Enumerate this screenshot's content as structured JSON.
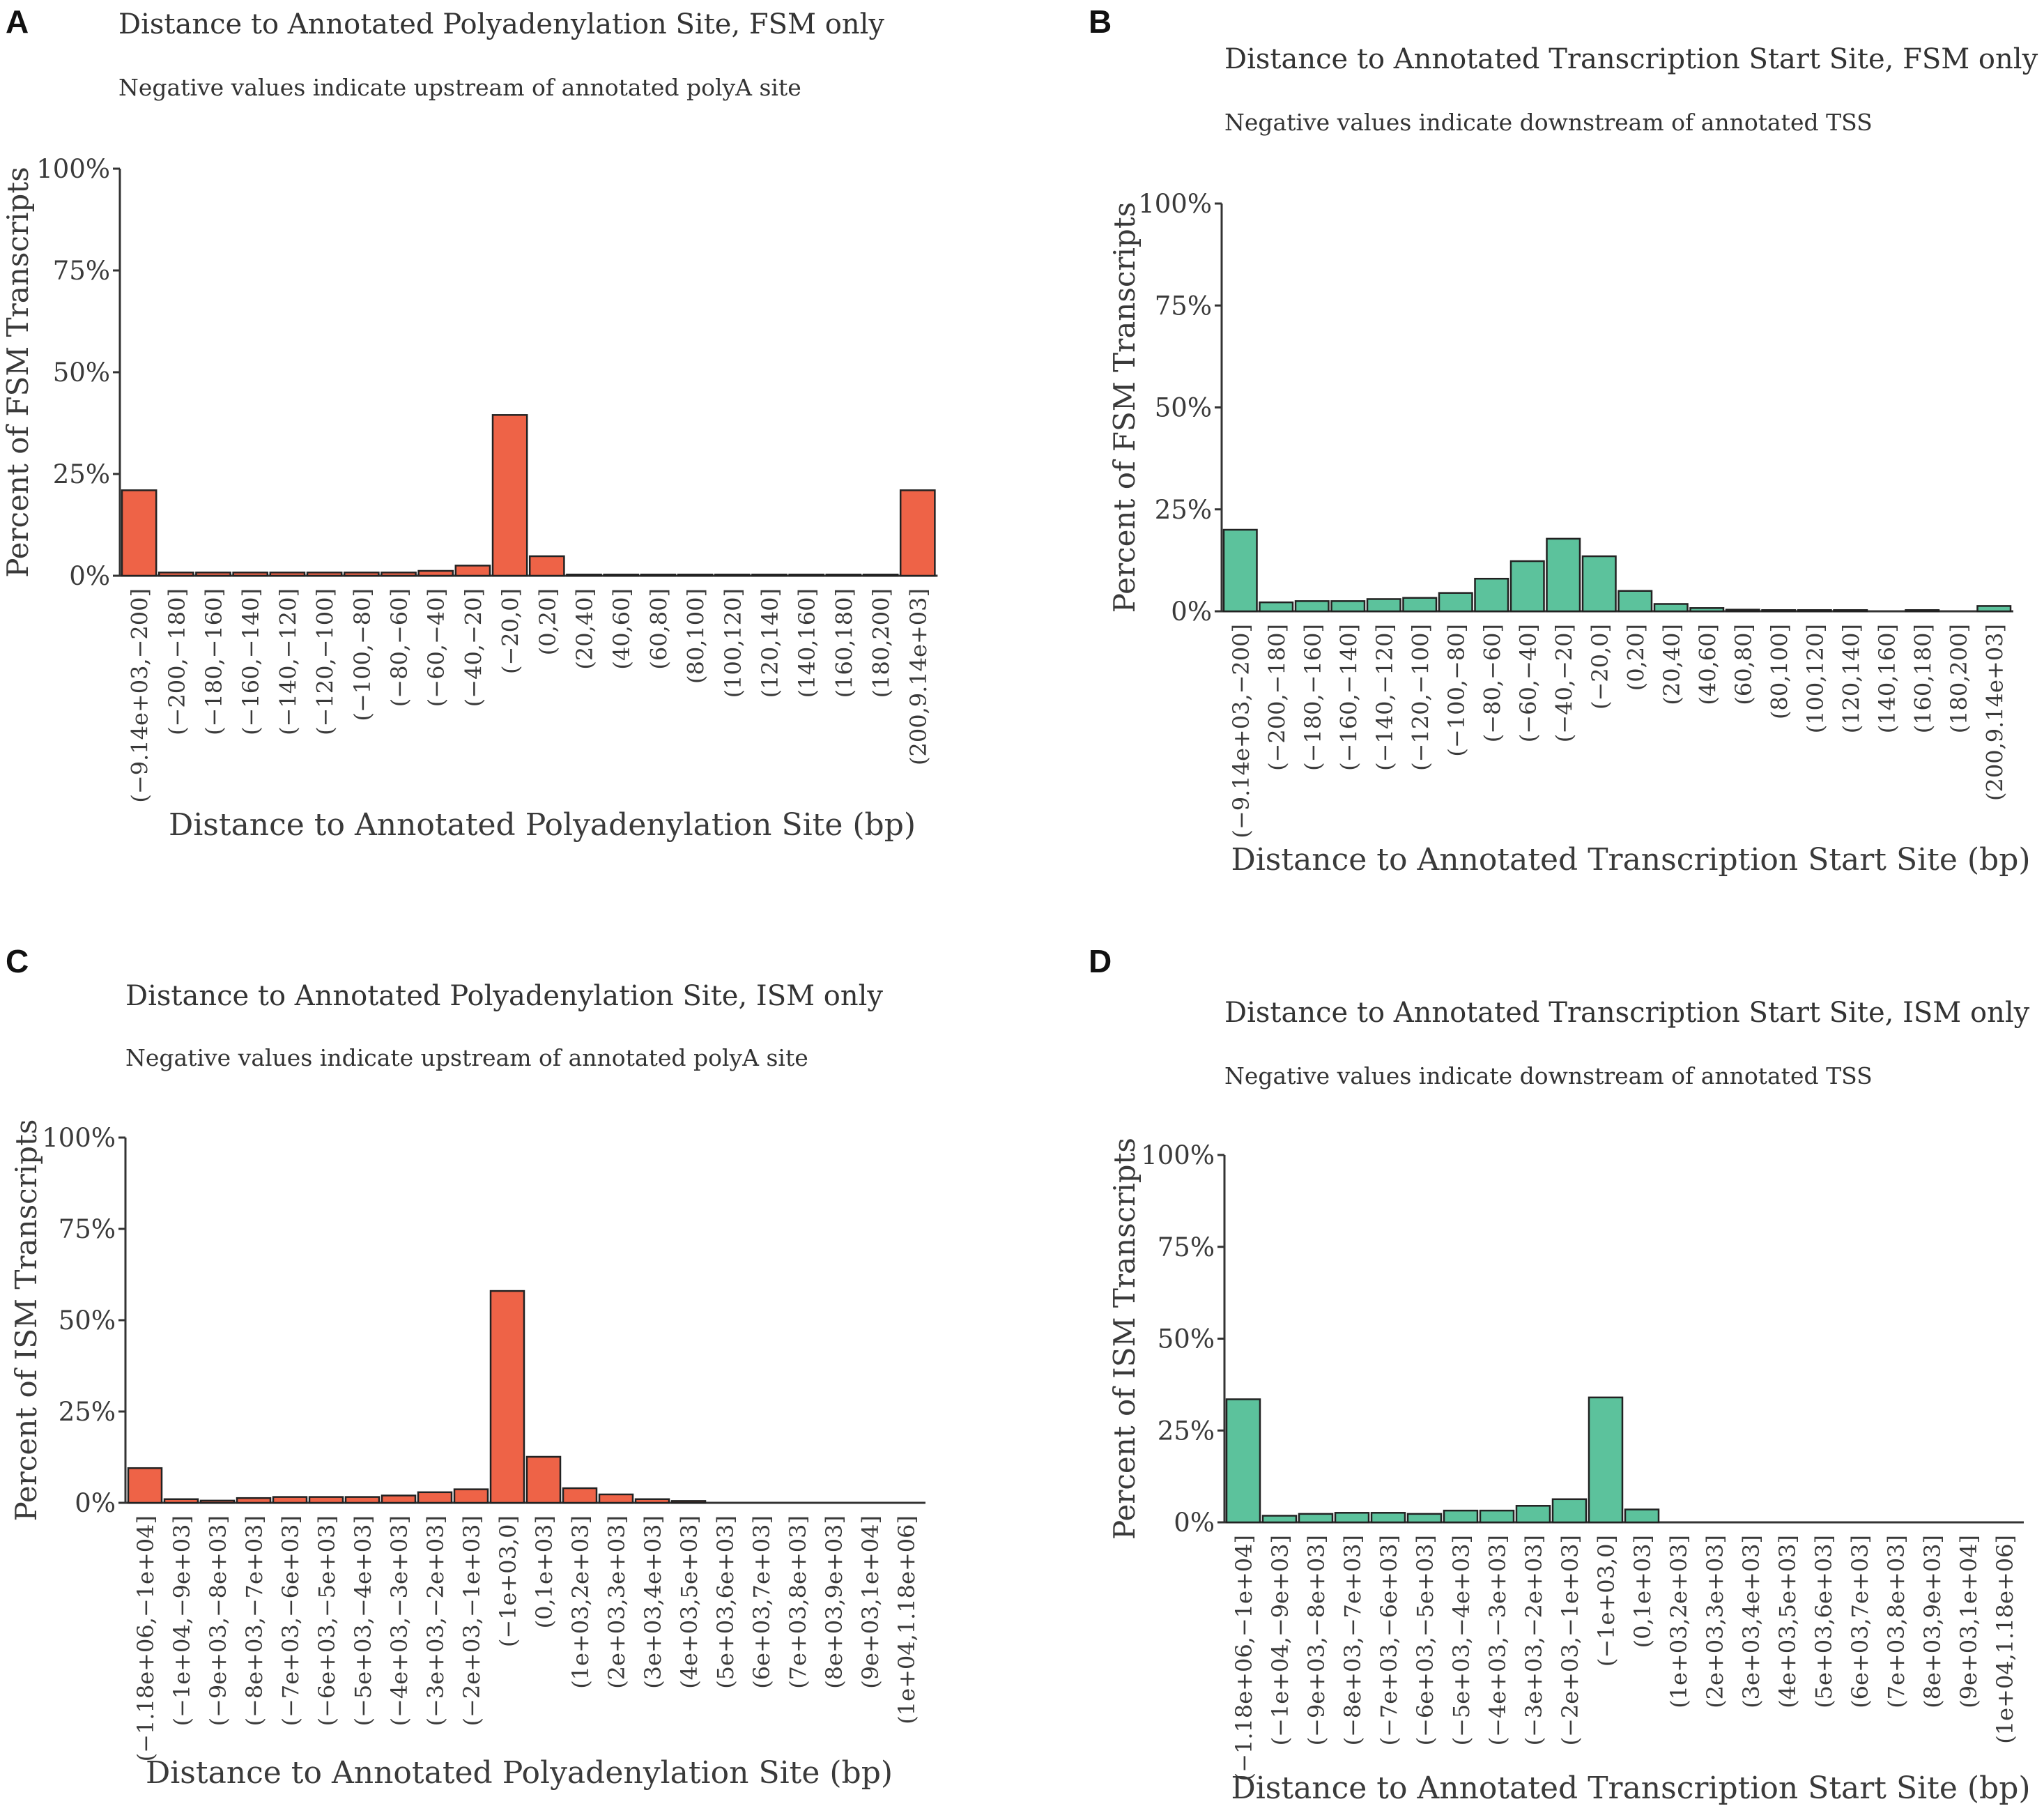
{
  "colors": {
    "poly": "#EE6347",
    "tss": "#5CC29C",
    "axis": "#333333"
  },
  "panels": [
    {
      "letter": "A",
      "chart_data": {
        "type": "bar",
        "title": "Distance to Annotated Polyadenylation Site, FSM only",
        "subtitle": "Negative values indicate upstream of annotated polyA site",
        "xlabel": "Distance to Annotated Polyadenylation Site (bp)",
        "ylabel": "Percent of FSM Transcripts",
        "ylim": [
          0,
          100
        ],
        "yticks": [
          "0%",
          "25%",
          "50%",
          "75%",
          "100%"
        ],
        "categories": [
          "(−9.14e+03,−200]",
          "(−200,−180]",
          "(−180,−160]",
          "(−160,−140]",
          "(−140,−120]",
          "(−120,−100]",
          "(−100,−80]",
          "(−80,−60]",
          "(−60,−40]",
          "(−40,−20]",
          "(−20,0]",
          "(0,20]",
          "(20,40]",
          "(40,60]",
          "(60,80]",
          "(80,100]",
          "(100,120]",
          "(120,140]",
          "(140,160]",
          "(160,180]",
          "(180,200]",
          "(200,9.14e+03]"
        ],
        "values": [
          21,
          0.8,
          0.8,
          0.8,
          0.8,
          0.8,
          0.8,
          0.8,
          1.2,
          2.5,
          39.5,
          4.8,
          0.3,
          0.3,
          0.3,
          0.3,
          0.3,
          0.3,
          0.3,
          0.3,
          0.3,
          21
        ],
        "color": "poly"
      }
    },
    {
      "letter": "B",
      "chart_data": {
        "type": "bar",
        "title": "Distance to Annotated Transcription Start Site, FSM only",
        "subtitle": "Negative values indicate downstream of annotated TSS",
        "xlabel": "Distance to Annotated Transcription Start Site (bp)",
        "ylabel": "Percent of FSM Transcripts",
        "ylim": [
          0,
          100
        ],
        "yticks": [
          "0%",
          "25%",
          "50%",
          "75%",
          "100%"
        ],
        "categories": [
          "(−9.14e+03,−200]",
          "(−200,−180]",
          "(−180,−160]",
          "(−160,−140]",
          "(−140,−120]",
          "(−120,−100]",
          "(−100,−80]",
          "(−80,−60]",
          "(−60,−40]",
          "(−40,−20]",
          "(−20,0]",
          "(0,20]",
          "(20,40]",
          "(40,60]",
          "(60,80]",
          "(80,100]",
          "(100,120]",
          "(120,140]",
          "(140,160]",
          "(160,180]",
          "(180,200]",
          "(200,9.14e+03]"
        ],
        "values": [
          20,
          2.2,
          2.5,
          2.5,
          3,
          3.3,
          4.5,
          8,
          12.3,
          17.8,
          13.5,
          5,
          1.8,
          0.8,
          0.4,
          0.3,
          0.3,
          0.3,
          0,
          0.3,
          0,
          1.3
        ],
        "color": "tss"
      }
    },
    {
      "letter": "C",
      "chart_data": {
        "type": "bar",
        "title": "Distance to Annotated Polyadenylation Site, ISM only",
        "subtitle": "Negative values indicate upstream of annotated polyA site",
        "xlabel": "Distance to Annotated Polyadenylation Site (bp)",
        "ylabel": "Percent of ISM Transcripts",
        "ylim": [
          0,
          100
        ],
        "yticks": [
          "0%",
          "25%",
          "50%",
          "75%",
          "100%"
        ],
        "categories": [
          "(−1.18e+06,−1e+04]",
          "(−1e+04,−9e+03]",
          "(−9e+03,−8e+03]",
          "(−8e+03,−7e+03]",
          "(−7e+03,−6e+03]",
          "(−6e+03,−5e+03]",
          "(−5e+03,−4e+03]",
          "(−4e+03,−3e+03]",
          "(−3e+03,−2e+03]",
          "(−2e+03,−1e+03]",
          "(−1e+03,0]",
          "(0,1e+03]",
          "(1e+03,2e+03]",
          "(2e+03,3e+03]",
          "(3e+03,4e+03]",
          "(4e+03,5e+03]",
          "(5e+03,6e+03]",
          "(6e+03,7e+03]",
          "(7e+03,8e+03]",
          "(8e+03,9e+03]",
          "(9e+03,1e+04]",
          "(1e+04,1.18e+06]"
        ],
        "values": [
          9.5,
          1,
          0.6,
          1.3,
          1.6,
          1.6,
          1.6,
          2,
          2.9,
          3.7,
          58,
          12.6,
          4,
          2.3,
          1,
          0.5,
          0,
          0,
          0,
          0,
          0,
          0
        ],
        "color": "poly"
      }
    },
    {
      "letter": "D",
      "chart_data": {
        "type": "bar",
        "title": "Distance to Annotated Transcription Start Site, ISM only",
        "subtitle": "Negative values indicate downstream of annotated TSS",
        "xlabel": "Distance to Annotated Transcription Start Site (bp)",
        "ylabel": "Percent of  ISM Transcripts",
        "ylim": [
          0,
          100
        ],
        "yticks": [
          "0%",
          "25%",
          "50%",
          "75%",
          "100%"
        ],
        "categories": [
          "(−1.18e+06,−1e+04]",
          "(−1e+04,−9e+03]",
          "(−9e+03,−8e+03]",
          "(−8e+03,−7e+03]",
          "(−7e+03,−6e+03]",
          "(−6e+03,−5e+03]",
          "(−5e+03,−4e+03]",
          "(−4e+03,−3e+03]",
          "(−3e+03,−2e+03]",
          "(−2e+03,−1e+03]",
          "(−1e+03,0]",
          "(0,1e+03]",
          "(1e+03,2e+03]",
          "(2e+03,3e+03]",
          "(3e+03,4e+03]",
          "(4e+03,5e+03]",
          "(5e+03,6e+03]",
          "(6e+03,7e+03]",
          "(7e+03,8e+03]",
          "(8e+03,9e+03]",
          "(9e+03,1e+04]",
          "(1e+04,1.18e+06]"
        ],
        "values": [
          33.5,
          1.8,
          2.3,
          2.6,
          2.6,
          2.3,
          3.2,
          3.2,
          4.5,
          6.3,
          34,
          3.5,
          0,
          0,
          0,
          0,
          0,
          0,
          0,
          0,
          0,
          0
        ],
        "color": "tss"
      }
    }
  ]
}
